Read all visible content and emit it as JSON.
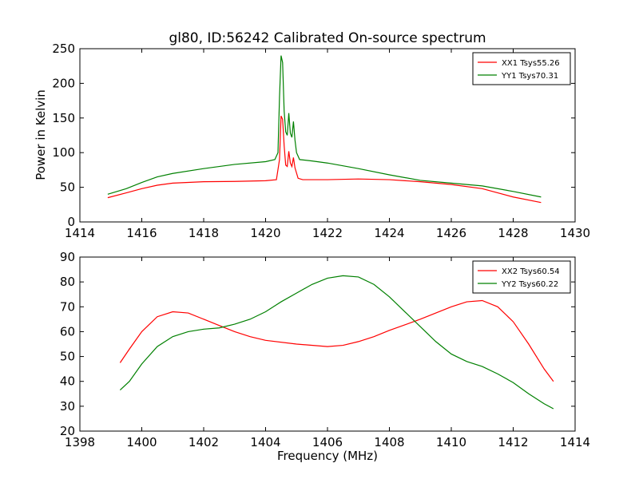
{
  "title": "gl80, ID:56242 Calibrated On-source spectrum",
  "xlabel": "Frequency (MHz)",
  "ylabel": "Power in Kelvin",
  "colors": {
    "series_red": "#ff0000",
    "series_green": "#008000"
  },
  "chart_data": [
    {
      "type": "line",
      "xlim": [
        1414,
        1430
      ],
      "ylim": [
        0,
        250
      ],
      "xticks": [
        1414,
        1416,
        1418,
        1420,
        1422,
        1424,
        1426,
        1428,
        1430
      ],
      "yticks": [
        0,
        50,
        100,
        150,
        200,
        250
      ],
      "ylabel": "Power in Kelvin",
      "legend_position": "top-right",
      "series": [
        {
          "name": "XX1 Tsys55.26",
          "color": "#ff0000",
          "points": [
            [
              1414.9,
              35
            ],
            [
              1415.5,
              42
            ],
            [
              1416,
              48
            ],
            [
              1416.5,
              53
            ],
            [
              1417,
              56
            ],
            [
              1418,
              58
            ],
            [
              1419,
              58.5
            ],
            [
              1420,
              59.5
            ],
            [
              1420.35,
              61
            ],
            [
              1420.45,
              90
            ],
            [
              1420.5,
              153
            ],
            [
              1420.55,
              148
            ],
            [
              1420.6,
              110
            ],
            [
              1420.65,
              82
            ],
            [
              1420.7,
              80
            ],
            [
              1420.75,
              102
            ],
            [
              1420.8,
              85
            ],
            [
              1420.85,
              80
            ],
            [
              1420.9,
              93
            ],
            [
              1420.95,
              78
            ],
            [
              1421.05,
              63
            ],
            [
              1421.2,
              61
            ],
            [
              1422,
              61
            ],
            [
              1423,
              62
            ],
            [
              1424,
              61
            ],
            [
              1425,
              58
            ],
            [
              1426,
              54
            ],
            [
              1427,
              48
            ],
            [
              1428,
              36
            ],
            [
              1428.9,
              28
            ]
          ]
        },
        {
          "name": "YY1 Tsys70.31",
          "color": "#008000",
          "points": [
            [
              1414.9,
              40
            ],
            [
              1415.5,
              48
            ],
            [
              1416,
              57
            ],
            [
              1416.5,
              65
            ],
            [
              1417,
              70
            ],
            [
              1418,
              77
            ],
            [
              1419,
              83
            ],
            [
              1420,
              87
            ],
            [
              1420.3,
              90
            ],
            [
              1420.4,
              100
            ],
            [
              1420.45,
              180
            ],
            [
              1420.5,
              240
            ],
            [
              1420.55,
              230
            ],
            [
              1420.6,
              160
            ],
            [
              1420.65,
              130
            ],
            [
              1420.7,
              125
            ],
            [
              1420.75,
              157
            ],
            [
              1420.8,
              128
            ],
            [
              1420.85,
              122
            ],
            [
              1420.9,
              145
            ],
            [
              1420.95,
              118
            ],
            [
              1421,
              100
            ],
            [
              1421.1,
              90
            ],
            [
              1421.5,
              88
            ],
            [
              1422,
              85
            ],
            [
              1423,
              77
            ],
            [
              1424,
              68
            ],
            [
              1425,
              60
            ],
            [
              1426,
              56
            ],
            [
              1427,
              52
            ],
            [
              1428,
              44
            ],
            [
              1428.9,
              36
            ]
          ]
        }
      ]
    },
    {
      "type": "line",
      "xlim": [
        1398,
        1414
      ],
      "ylim": [
        20,
        90
      ],
      "xticks": [
        1398,
        1400,
        1402,
        1404,
        1406,
        1408,
        1410,
        1412,
        1414
      ],
      "yticks": [
        20,
        30,
        40,
        50,
        60,
        70,
        80,
        90
      ],
      "xlabel": "Frequency (MHz)",
      "legend_position": "top-right",
      "series": [
        {
          "name": "XX2 Tsys60.54",
          "color": "#ff0000",
          "points": [
            [
              1399.3,
              47.5
            ],
            [
              1399.6,
              53
            ],
            [
              1400,
              60
            ],
            [
              1400.5,
              66
            ],
            [
              1401,
              68
            ],
            [
              1401.5,
              67.5
            ],
            [
              1402,
              65
            ],
            [
              1402.5,
              62.5
            ],
            [
              1403,
              60
            ],
            [
              1403.5,
              58
            ],
            [
              1404,
              56.5
            ],
            [
              1405,
              55
            ],
            [
              1406,
              54
            ],
            [
              1406.5,
              54.5
            ],
            [
              1407,
              56
            ],
            [
              1407.5,
              58
            ],
            [
              1408,
              60.5
            ],
            [
              1409,
              65
            ],
            [
              1409.5,
              67.5
            ],
            [
              1410,
              70
            ],
            [
              1410.5,
              72
            ],
            [
              1411,
              72.5
            ],
            [
              1411.5,
              70
            ],
            [
              1412,
              64
            ],
            [
              1412.5,
              55
            ],
            [
              1413,
              45
            ],
            [
              1413.3,
              40
            ]
          ]
        },
        {
          "name": "YY2 Tsys60.22",
          "color": "#008000",
          "points": [
            [
              1399.3,
              36.5
            ],
            [
              1399.6,
              40
            ],
            [
              1400,
              47
            ],
            [
              1400.5,
              54
            ],
            [
              1401,
              58
            ],
            [
              1401.5,
              60
            ],
            [
              1402,
              61
            ],
            [
              1402.5,
              61.5
            ],
            [
              1403,
              63
            ],
            [
              1403.5,
              65
            ],
            [
              1404,
              68
            ],
            [
              1404.5,
              72
            ],
            [
              1405,
              75.5
            ],
            [
              1405.5,
              79
            ],
            [
              1406,
              81.5
            ],
            [
              1406.5,
              82.5
            ],
            [
              1407,
              82
            ],
            [
              1407.5,
              79
            ],
            [
              1408,
              74
            ],
            [
              1408.5,
              68
            ],
            [
              1409,
              62
            ],
            [
              1409.5,
              56
            ],
            [
              1410,
              51
            ],
            [
              1410.5,
              48
            ],
            [
              1411,
              46
            ],
            [
              1411.5,
              43
            ],
            [
              1412,
              39.5
            ],
            [
              1412.5,
              35
            ],
            [
              1413,
              31
            ],
            [
              1413.3,
              29
            ]
          ]
        }
      ]
    }
  ]
}
